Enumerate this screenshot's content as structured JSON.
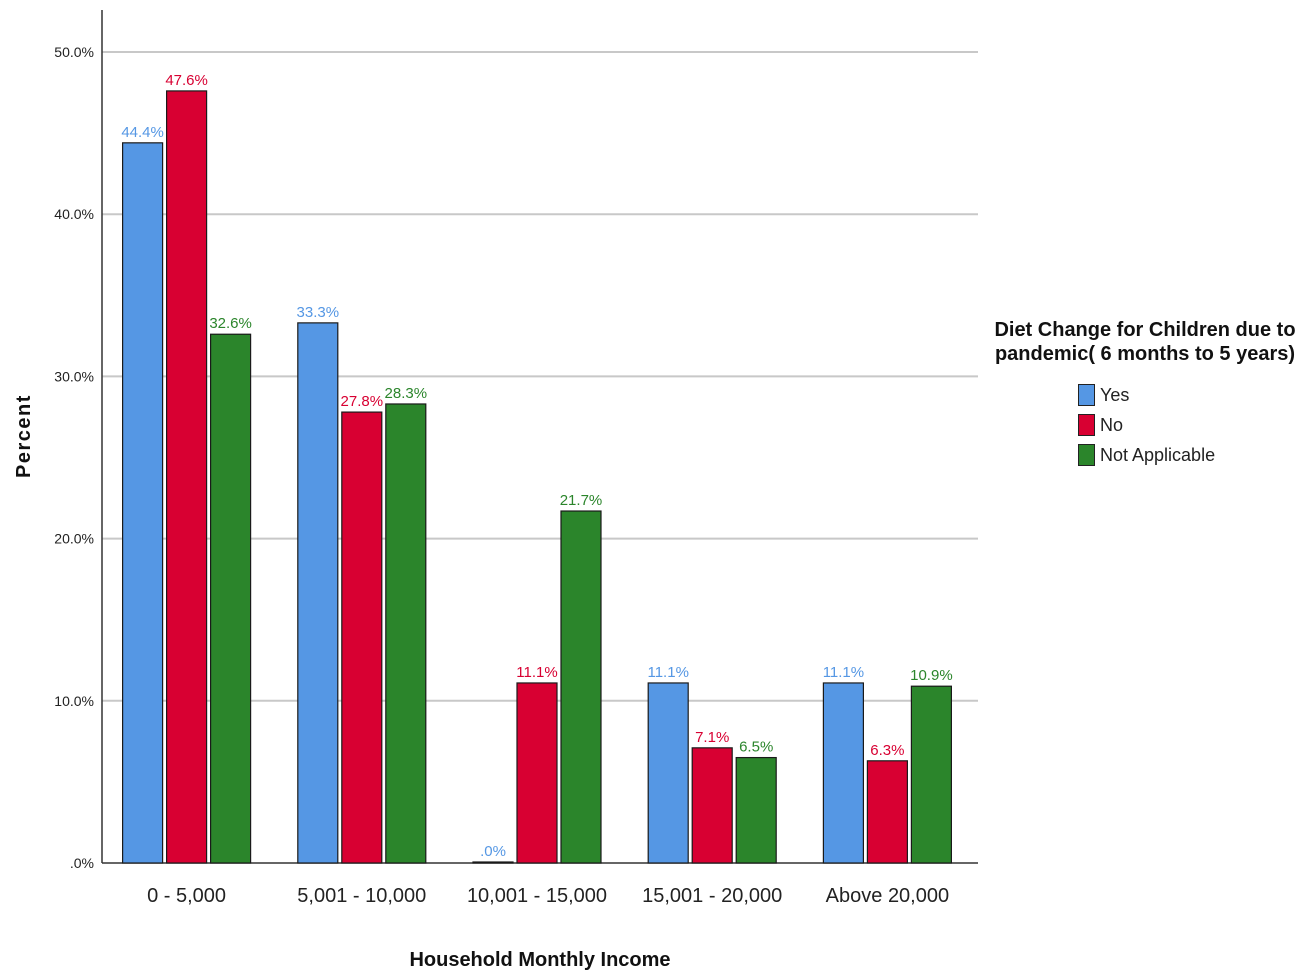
{
  "chart_data": {
    "type": "bar",
    "title": "",
    "xlabel": "Household Monthly Income",
    "ylabel": "Percent",
    "ylim": [
      0,
      50
    ],
    "yticks": [
      ".0%",
      "10.0%",
      "20.0%",
      "30.0%",
      "40.0%",
      "50.0%"
    ],
    "grid": true,
    "legend_placement": "right",
    "legend_title": "Diet Change for Children due to pandemic( 6 months to 5 years)",
    "categories": [
      "0 - 5,000",
      "5,001 - 10,000",
      "10,001 - 15,000",
      "15,001 - 20,000",
      "Above 20,000"
    ],
    "series": [
      {
        "name": "Yes",
        "color": "#5597e4",
        "values": [
          44.4,
          33.3,
          0.0,
          11.1,
          11.1
        ],
        "labels": [
          "44.4%",
          "33.3%",
          ".0%",
          "11.1%",
          "11.1%"
        ]
      },
      {
        "name": "No",
        "color": "#d80032",
        "values": [
          47.6,
          27.8,
          11.1,
          7.1,
          6.3
        ],
        "labels": [
          "47.6%",
          "27.8%",
          "11.1%",
          "7.1%",
          "6.3%"
        ]
      },
      {
        "name": "Not Applicable",
        "color": "#2b852b",
        "values": [
          32.6,
          28.3,
          21.7,
          6.5,
          10.9
        ],
        "labels": [
          "32.6%",
          "28.3%",
          "21.7%",
          "6.5%",
          "10.9%"
        ]
      }
    ]
  }
}
